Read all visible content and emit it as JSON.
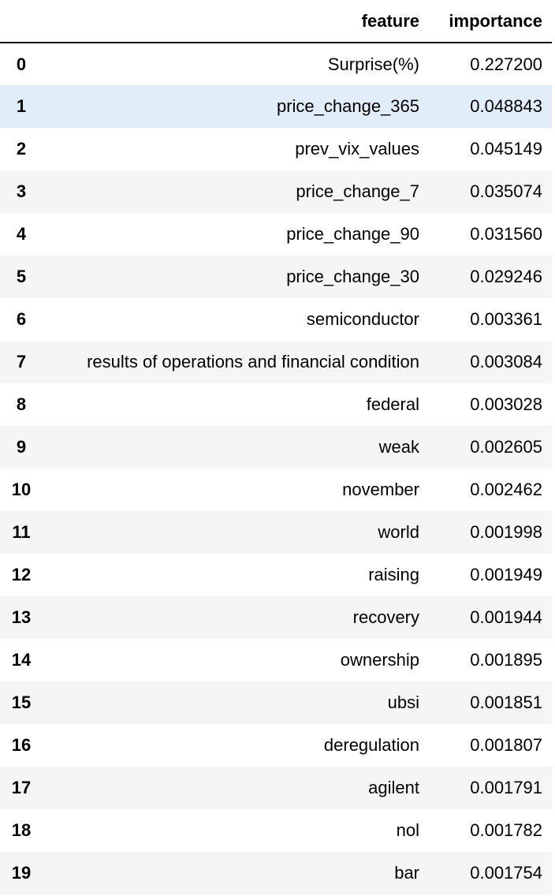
{
  "table": {
    "columns": {
      "index": "",
      "feature": "feature",
      "importance": "importance"
    },
    "highlight_colors": {
      "row_even": "#f5f5f5",
      "row_odd": "#ffffff",
      "row_hover": "#e1edf9"
    },
    "rows": [
      {
        "index": "0",
        "feature": "Surprise(%)",
        "importance": "0.227200"
      },
      {
        "index": "1",
        "feature": "price_change_365",
        "importance": "0.048843"
      },
      {
        "index": "2",
        "feature": "prev_vix_values",
        "importance": "0.045149"
      },
      {
        "index": "3",
        "feature": "price_change_7",
        "importance": "0.035074"
      },
      {
        "index": "4",
        "feature": "price_change_90",
        "importance": "0.031560"
      },
      {
        "index": "5",
        "feature": "price_change_30",
        "importance": "0.029246"
      },
      {
        "index": "6",
        "feature": "semiconductor",
        "importance": "0.003361"
      },
      {
        "index": "7",
        "feature": "results of operations and financial condition",
        "importance": "0.003084"
      },
      {
        "index": "8",
        "feature": "federal",
        "importance": "0.003028"
      },
      {
        "index": "9",
        "feature": "weak",
        "importance": "0.002605"
      },
      {
        "index": "10",
        "feature": "november",
        "importance": "0.002462"
      },
      {
        "index": "11",
        "feature": "world",
        "importance": "0.001998"
      },
      {
        "index": "12",
        "feature": "raising",
        "importance": "0.001949"
      },
      {
        "index": "13",
        "feature": "recovery",
        "importance": "0.001944"
      },
      {
        "index": "14",
        "feature": "ownership",
        "importance": "0.001895"
      },
      {
        "index": "15",
        "feature": "ubsi",
        "importance": "0.001851"
      },
      {
        "index": "16",
        "feature": "deregulation",
        "importance": "0.001807"
      },
      {
        "index": "17",
        "feature": "agilent",
        "importance": "0.001791"
      },
      {
        "index": "18",
        "feature": "nol",
        "importance": "0.001782"
      },
      {
        "index": "19",
        "feature": "bar",
        "importance": "0.001754"
      }
    ]
  }
}
